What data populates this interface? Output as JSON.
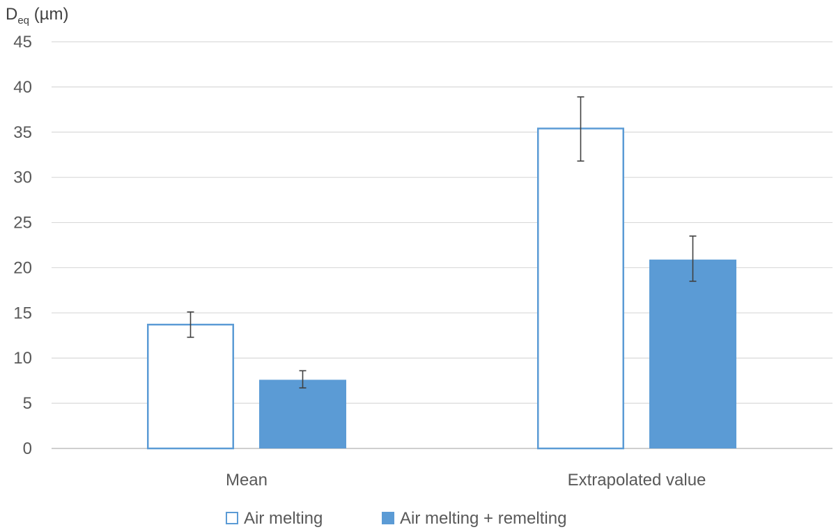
{
  "chart_data": {
    "type": "bar",
    "title": "",
    "xlabel": "",
    "ylabel": {
      "main": "D",
      "subscript": "eq",
      "unit": " (µm)"
    },
    "ylim": [
      0,
      45
    ],
    "yticks": [
      0,
      5,
      10,
      15,
      20,
      25,
      30,
      35,
      40,
      45
    ],
    "grid": true,
    "legend_position": "bottom",
    "categories": [
      "Mean",
      "Extrapolated value"
    ],
    "series": [
      {
        "name": "Air melting",
        "values": [
          13.8,
          35.5
        ],
        "error_low": [
          12.3,
          31.8
        ],
        "error_high": [
          15.1,
          38.9
        ],
        "style": "outline",
        "color": "#5B9BD5"
      },
      {
        "name": "Air melting + remelting",
        "values": [
          7.6,
          20.9
        ],
        "error_low": [
          6.7,
          18.5
        ],
        "error_high": [
          8.6,
          23.5
        ],
        "style": "filled",
        "color": "#5B9BD5"
      }
    ]
  }
}
